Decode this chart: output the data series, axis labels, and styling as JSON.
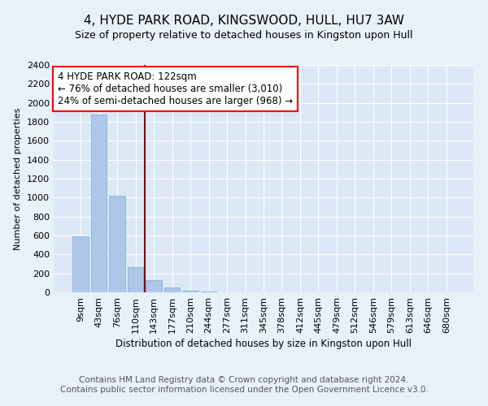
{
  "title": "4, HYDE PARK ROAD, KINGSWOOD, HULL, HU7 3AW",
  "subtitle": "Size of property relative to detached houses in Kingston upon Hull",
  "xlabel": "Distribution of detached houses by size in Kingston upon Hull",
  "ylabel": "Number of detached properties",
  "footer_line1": "Contains HM Land Registry data © Crown copyright and database right 2024.",
  "footer_line2": "Contains public sector information licensed under the Open Government Licence v3.0.",
  "annotation_line1": "4 HYDE PARK ROAD: 122sqm",
  "annotation_line2": "← 76% of detached houses are smaller (3,010)",
  "annotation_line3": "24% of semi-detached houses are larger (968) →",
  "categories": [
    "9sqm",
    "43sqm",
    "76sqm",
    "110sqm",
    "143sqm",
    "177sqm",
    "210sqm",
    "244sqm",
    "277sqm",
    "311sqm",
    "345sqm",
    "378sqm",
    "412sqm",
    "445sqm",
    "479sqm",
    "512sqm",
    "546sqm",
    "579sqm",
    "613sqm",
    "646sqm",
    "680sqm"
  ],
  "values": [
    590,
    1880,
    1020,
    270,
    130,
    55,
    20,
    10,
    0,
    0,
    0,
    0,
    0,
    0,
    0,
    0,
    0,
    0,
    0,
    0,
    0
  ],
  "bar_color": "#aec6e8",
  "bar_edge_color": "#7aafd4",
  "redline_x": 3.5,
  "ylim": [
    0,
    2400
  ],
  "yticks": [
    0,
    200,
    400,
    600,
    800,
    1000,
    1200,
    1400,
    1600,
    1800,
    2000,
    2200,
    2400
  ],
  "bg_color": "#e8f0f8",
  "plot_bg_color": "#dce8f5",
  "grid_color": "#ffffff",
  "title_fontsize": 11,
  "subtitle_fontsize": 9,
  "footer_fontsize": 7.5,
  "annotation_fontsize": 8.5
}
